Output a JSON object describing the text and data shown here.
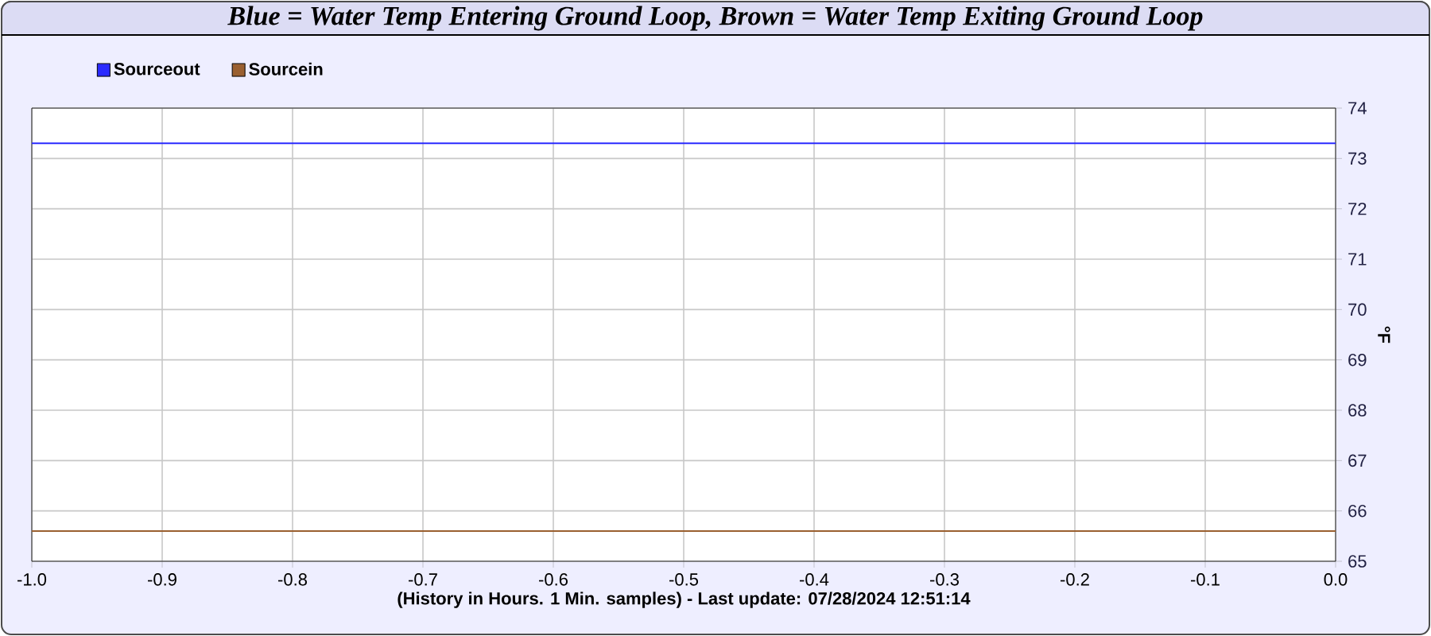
{
  "chart_data": {
    "type": "line",
    "title": "Blue = Water Temp Entering Ground Loop, Brown = Water Temp Exiting Ground Loop",
    "xlabel": "(History in Hours. 1 Min. samples) - Last update: 07/28/2024 12:51:14",
    "ylabel": "°F",
    "x": [
      -1.0,
      0.0
    ],
    "series": [
      {
        "name": "Sourceout",
        "color": "#2a2aff",
        "values": [
          73.3,
          73.3
        ]
      },
      {
        "name": "Sourcein",
        "color": "#9a6030",
        "values": [
          65.6,
          65.6
        ]
      }
    ],
    "xlim": [
      -1.0,
      0.0
    ],
    "ylim": [
      65,
      74
    ],
    "xticks": [
      {
        "value": -1.0,
        "label": "-1.0"
      },
      {
        "value": -0.9,
        "label": "-0.9"
      },
      {
        "value": -0.8,
        "label": "-0.8"
      },
      {
        "value": -0.7,
        "label": "-0.7"
      },
      {
        "value": -0.6,
        "label": "-0.6"
      },
      {
        "value": -0.5,
        "label": "-0.5"
      },
      {
        "value": -0.4,
        "label": "-0.4"
      },
      {
        "value": -0.3,
        "label": "-0.3"
      },
      {
        "value": -0.2,
        "label": "-0.2"
      },
      {
        "value": -0.1,
        "label": "-0.1"
      },
      {
        "value": 0.0,
        "label": "0.0"
      }
    ],
    "yticks": [
      65,
      66,
      67,
      68,
      69,
      70,
      71,
      72,
      73,
      74
    ],
    "grid": true,
    "legend": "top left"
  }
}
